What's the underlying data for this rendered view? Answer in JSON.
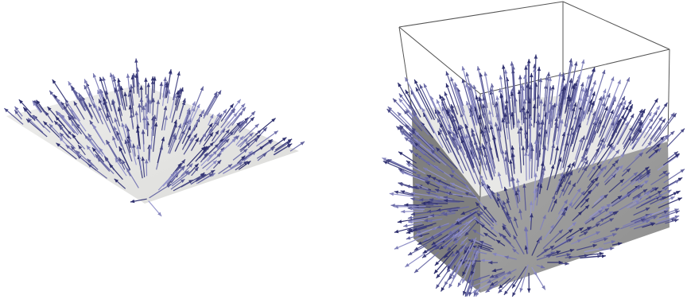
{
  "scene": {
    "background_color": "#ffffff",
    "panels": [
      {
        "id": "left",
        "object": "flat-sheet-with-vector-glyphs",
        "surface_color": "#e6e6e4",
        "arrow_light_color": "#9a9ad0",
        "arrow_dark_color": "#2e2f6e"
      },
      {
        "id": "right",
        "object": "box-with-vector-glyphs",
        "top_face_color": "#e8e8e6",
        "front_face_color": "#9c9c9c",
        "side_face_color": "#7f7f7f",
        "outline_color": "#555555",
        "arrow_light_color": "#9a9ad0",
        "arrow_dark_color": "#2e2f6e"
      }
    ]
  }
}
